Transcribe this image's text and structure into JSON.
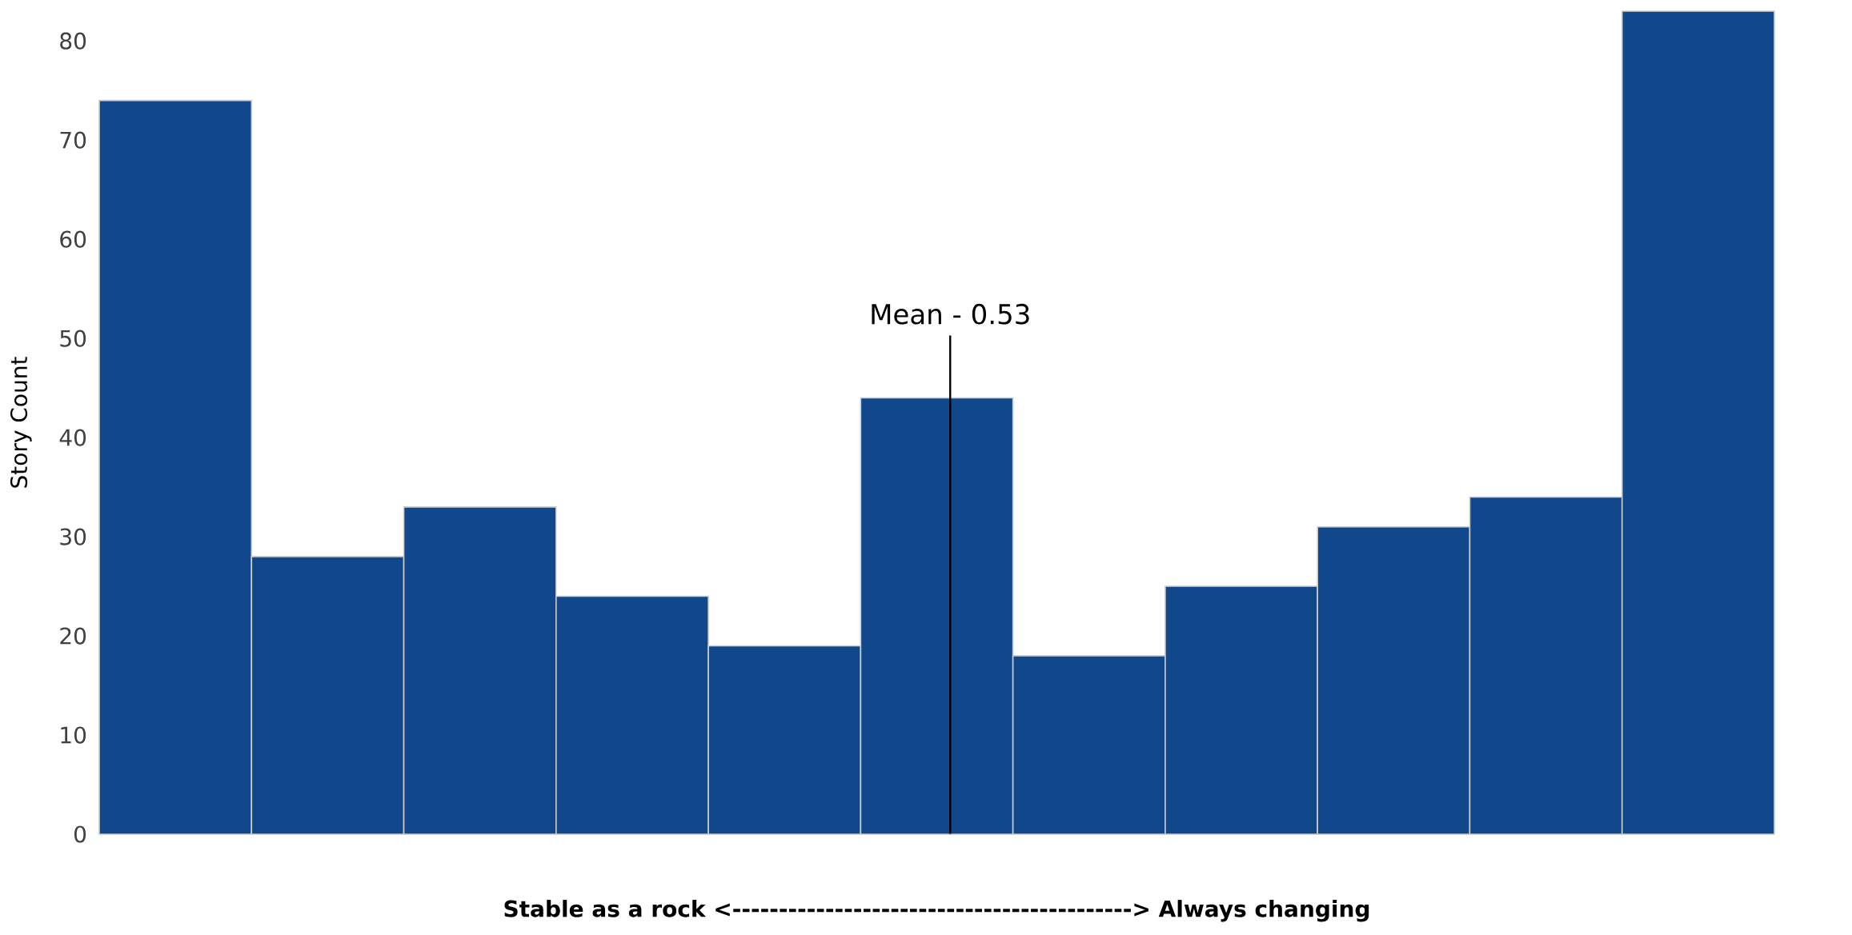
{
  "chart_data": {
    "type": "bar",
    "xlabel": "**Stable as a rock <------------------------------------------->  Always changing**",
    "ylabel": "Story Count",
    "categories": [
      null,
      null,
      null,
      null,
      null,
      null,
      null,
      null,
      null,
      null,
      null
    ],
    "values": [
      74,
      28,
      33,
      24,
      19,
      44,
      18,
      25,
      31,
      34,
      83
    ],
    "color": "#11488c",
    "ylim": [
      0,
      83
    ],
    "yticks": [
      0,
      10,
      20,
      30,
      40,
      50,
      60,
      70,
      80
    ],
    "tick_labels": "y",
    "grid": false,
    "annotations": [
      "Mean - 0.53"
    ]
  }
}
